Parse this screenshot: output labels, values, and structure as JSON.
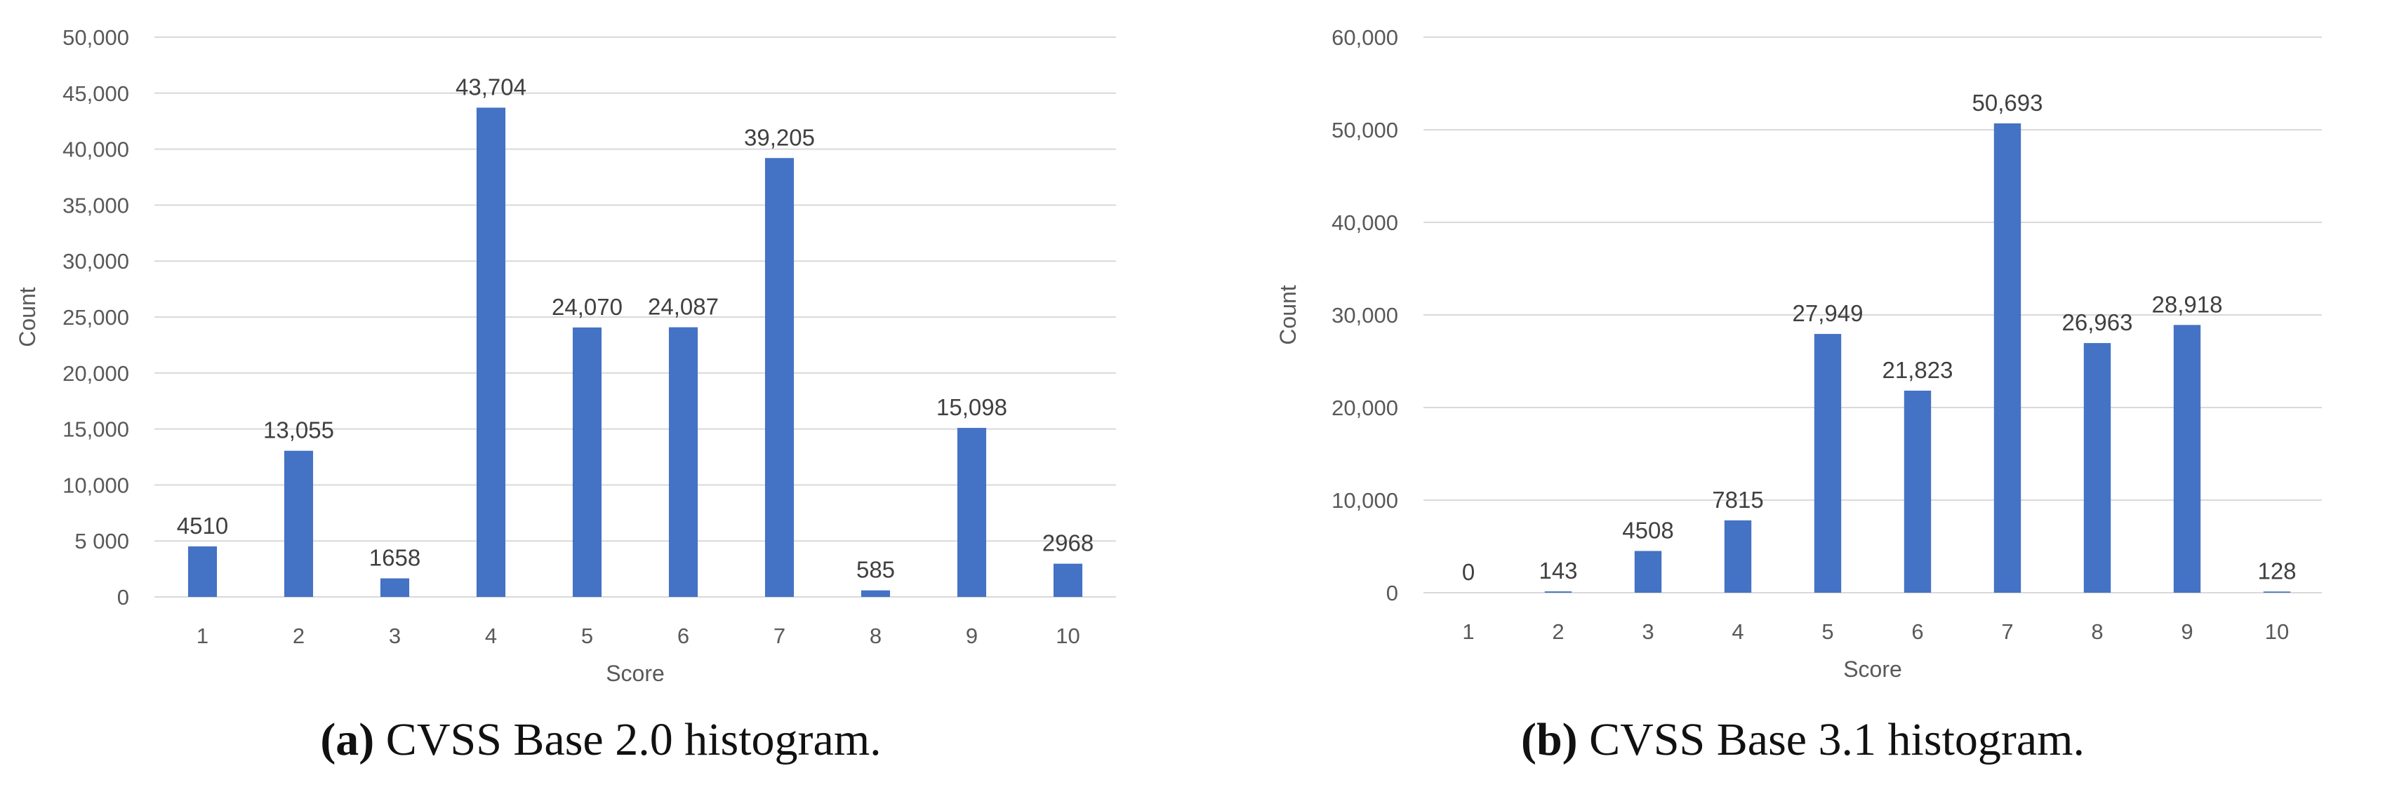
{
  "chart_data": [
    {
      "type": "bar",
      "categories": [
        "1",
        "2",
        "3",
        "4",
        "5",
        "6",
        "7",
        "8",
        "9",
        "10"
      ],
      "values": [
        4510,
        13055,
        1658,
        43704,
        24070,
        24087,
        39205,
        585,
        15098,
        2968
      ],
      "data_labels": [
        "4510",
        "13,055",
        "1658",
        "43,704",
        "24,070",
        "24,087",
        "39,205",
        "585",
        "15,098",
        "2968"
      ],
      "yticks": [
        0,
        5000,
        10000,
        15000,
        20000,
        25000,
        30000,
        35000,
        40000,
        45000,
        50000
      ],
      "ytick_labels": [
        "0",
        "5 000",
        "10,000",
        "15,000",
        "20,000",
        "25,000",
        "30,000",
        "35,000",
        "40,000",
        "45,000",
        "50,000"
      ],
      "ylim": [
        0,
        50000
      ],
      "xlabel": "Score",
      "ylabel": "Count",
      "grid": true,
      "bar_color": "#4472C4",
      "caption_tag": "(a)",
      "caption_text": "CVSS Base 2.0 histogram."
    },
    {
      "type": "bar",
      "categories": [
        "1",
        "2",
        "3",
        "4",
        "5",
        "6",
        "7",
        "8",
        "9",
        "10"
      ],
      "values": [
        0,
        143,
        4508,
        7815,
        27949,
        21823,
        50693,
        26963,
        28918,
        128
      ],
      "data_labels": [
        "0",
        "143",
        "4508",
        "7815",
        "27,949",
        "21,823",
        "50,693",
        "26,963",
        "28,918",
        "128"
      ],
      "yticks": [
        0,
        10000,
        20000,
        30000,
        40000,
        50000,
        60000
      ],
      "ytick_labels": [
        "0",
        "10,000",
        "20,000",
        "30,000",
        "40,000",
        "50,000",
        "60,000"
      ],
      "ylim": [
        0,
        60000
      ],
      "xlabel": "Score",
      "ylabel": "Count",
      "grid": true,
      "bar_color": "#4472C4",
      "caption_tag": "(b)",
      "caption_text": "CVSS Base 3.1 histogram."
    }
  ]
}
